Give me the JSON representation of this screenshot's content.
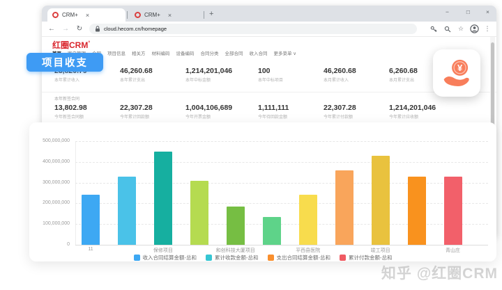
{
  "browser": {
    "tabs": [
      "CRM+",
      "CRM+"
    ],
    "new_tab_button": "+",
    "window_controls": {
      "minimize": "−",
      "maximize": "□",
      "close": "×"
    },
    "nav_buttons": {
      "back": "←",
      "forward": "→",
      "reload": "↻"
    },
    "url": "cloud.hecom.cn/homepage",
    "toolbar_glyphs": {
      "star": "☆",
      "menu": "⋮"
    }
  },
  "app": {
    "logo": "红圈CRM",
    "logo_degree": "°",
    "nav_items": [
      "首页",
      "客户管理",
      "合同",
      "项目信息",
      "相关方",
      "材料编码",
      "设备编码",
      "合同分类",
      "全部合同",
      "收入合同",
      "更多菜单 ∨"
    ],
    "metrics_row1": [
      {
        "value": "23,820.79",
        "label": "本年累计收入"
      },
      {
        "value": "46,260.68",
        "label": "本年累计支出"
      },
      {
        "value": "1,214,201,046",
        "label": "本年中标金额"
      },
      {
        "value": "100",
        "label": "本年中标项目"
      },
      {
        "value": "46,260.68",
        "label": "本月累计收入"
      },
      {
        "value": "6,260.68",
        "label": "本月累计支出"
      }
    ],
    "section_title": "本年新签合同",
    "metrics_row2": [
      {
        "value": "13,802.98",
        "label": "今年新签合同额"
      },
      {
        "value": "22,307.28",
        "label": "今年累计回款额"
      },
      {
        "value": "1,004,106,689",
        "label": "今年开票金额"
      },
      {
        "value": "1,111,111",
        "label": "今年待回款金额"
      },
      {
        "value": "22,307.28",
        "label": "今年累计付款额"
      },
      {
        "value": "1,214,201,046",
        "label": "今年累计应收额"
      }
    ]
  },
  "badge": {
    "label": "项目收支"
  },
  "float_icon": {
    "name": "hand-coin-icon",
    "symbol": "¥",
    "color": "#F87E5B"
  },
  "chart_data": {
    "type": "bar",
    "title": "",
    "xlabel": "",
    "ylabel": "",
    "categories": [
      "11",
      "",
      "保修项目",
      "",
      "和创科技大厦项目",
      "",
      "平西县医院",
      "",
      "竣工项目",
      "",
      "青山庄"
    ],
    "values": [
      240000000,
      330000000,
      450000000,
      310000000,
      185000000,
      135000000,
      240000000,
      360000000,
      430000000,
      330000000,
      330000000
    ],
    "bar_colors": [
      "#3DA8F3",
      "#4AC2E8",
      "#16AFA0",
      "#B5DB50",
      "#76BE43",
      "#5ED389",
      "#F8DC4D",
      "#F9A55B",
      "#E9C23E",
      "#F9921E",
      "#F2606A"
    ],
    "ylim": [
      0,
      500000000
    ],
    "ytick_labels": [
      "500,000,000",
      "400,000,000",
      "300,000,000",
      "200,000,000",
      "100,000,000",
      "0"
    ],
    "grid": "horizontal-dashed",
    "legend_position": "bottom",
    "legend": [
      {
        "label": "收入合同结算金额-总和",
        "color": "#3DA8F3"
      },
      {
        "label": "累计收款金额-总和",
        "color": "#36C6D3"
      },
      {
        "label": "支出合同结算金额-总和",
        "color": "#F98F2E"
      },
      {
        "label": "累计付款金额-总和",
        "color": "#F05B63"
      }
    ]
  },
  "watermark": "知乎 @红圈CRM"
}
